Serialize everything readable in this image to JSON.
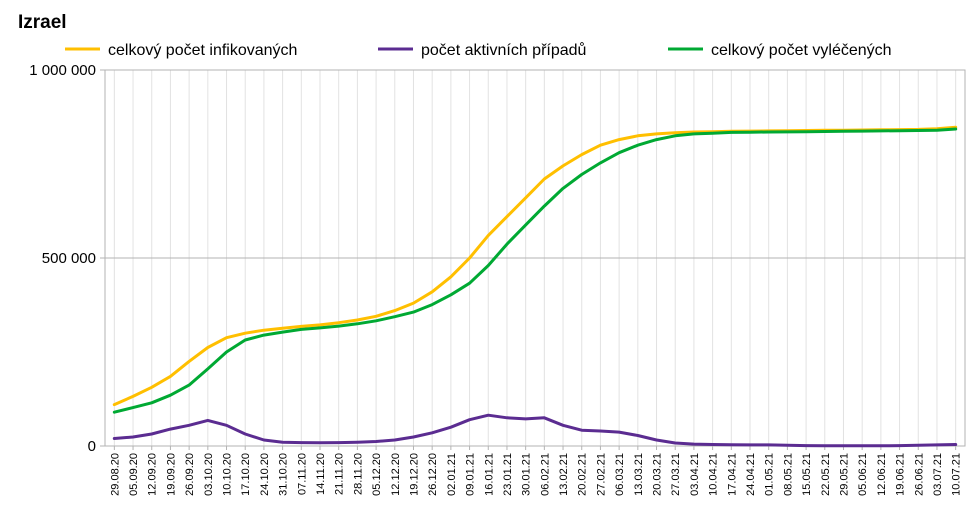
{
  "chart_data": {
    "type": "line",
    "title": "Izrael",
    "xlabel": "",
    "ylabel": "",
    "ylim": [
      0,
      1000000
    ],
    "yticks": [
      0,
      500000,
      1000000
    ],
    "ytick_labels": [
      "0",
      "500 000",
      "1 000 000"
    ],
    "grid": true,
    "legend_placement": "top",
    "x_tick_labels": [
      "29.08.20",
      "05.09.20",
      "12.09.20",
      "19.09.20",
      "26.09.20",
      "03.10.20",
      "10.10.20",
      "17.10.20",
      "24.10.20",
      "31.10.20",
      "07.11.20",
      "14.11.20",
      "21.11.20",
      "28.11.20",
      "05.12.20",
      "12.12.20",
      "19.12.20",
      "26.12.20",
      "02.01.21",
      "09.01.21",
      "16.01.21",
      "23.01.21",
      "30.01.21",
      "06.02.21",
      "13.02.21",
      "20.02.21",
      "27.02.21",
      "06.03.21",
      "13.03.21",
      "20.03.21",
      "27.03.21",
      "03.04.21",
      "10.04.21",
      "17.04.21",
      "24.04.21",
      "01.05.21",
      "08.05.21",
      "15.05.21",
      "22.05.21",
      "29.05.21",
      "05.06.21",
      "12.06.21",
      "19.06.21",
      "26.06.21",
      "03.07.21",
      "10.07.21"
    ],
    "series": [
      {
        "name": "celkový počet infikovaných",
        "color": "#ffbf00",
        "values": [
          110000,
          132000,
          156000,
          185000,
          225000,
          262000,
          288000,
          300000,
          308000,
          313000,
          318000,
          322000,
          328000,
          335000,
          345000,
          360000,
          380000,
          410000,
          450000,
          500000,
          560000,
          610000,
          660000,
          710000,
          745000,
          775000,
          800000,
          815000,
          825000,
          830000,
          833000,
          835000,
          836000,
          837000,
          837500,
          838000,
          838500,
          839000,
          839500,
          840000,
          840500,
          841000,
          841500,
          842000,
          844000,
          848000
        ]
      },
      {
        "name": "počet aktivních případů",
        "color": "#5b2c91",
        "values": [
          20000,
          24000,
          32000,
          45000,
          55000,
          68000,
          55000,
          32000,
          16000,
          10000,
          9000,
          8500,
          9000,
          10000,
          12000,
          16000,
          24000,
          35000,
          50000,
          70000,
          82000,
          75000,
          72000,
          75000,
          55000,
          42000,
          40000,
          37000,
          28000,
          16000,
          8000,
          5000,
          4000,
          3500,
          3000,
          2800,
          2000,
          1000,
          800,
          600,
          500,
          600,
          1000,
          2000,
          3000,
          4000
        ]
      },
      {
        "name": "celkový počet vyléčených",
        "color": "#00a933",
        "values": [
          90000,
          102000,
          115000,
          135000,
          162000,
          205000,
          250000,
          282000,
          295000,
          303000,
          310000,
          314000,
          319000,
          325000,
          333000,
          344000,
          356000,
          376000,
          402000,
          433000,
          480000,
          537000,
          588000,
          638000,
          685000,
          722000,
          753000,
          780000,
          800000,
          815000,
          825000,
          830000,
          832000,
          834000,
          834500,
          835000,
          835500,
          836000,
          836500,
          837000,
          837500,
          838000,
          838500,
          839000,
          840000,
          843000
        ]
      }
    ]
  }
}
